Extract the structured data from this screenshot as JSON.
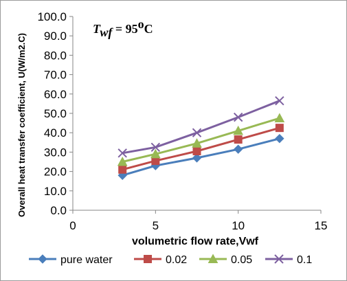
{
  "chart_data": {
    "type": "line",
    "xlabel": "volumetric flow rate,Vwf",
    "ylabel": "Overall heat transfer coefficient, U(W/m2.C)",
    "annotation": {
      "symbol": "T",
      "subscript": "wf",
      "equals": " = 95",
      "superscript": "o",
      "unit": "C"
    },
    "xlim": [
      0,
      15
    ],
    "ylim": [
      0,
      100
    ],
    "x_ticks": [
      "0",
      "5",
      "10",
      "15"
    ],
    "y_ticks": [
      "0.0",
      "10.0",
      "20.0",
      "30.0",
      "40.0",
      "50.0",
      "60.0",
      "70.0",
      "80.0",
      "90.0",
      "100.0"
    ],
    "x": [
      3,
      5,
      7.5,
      10,
      12.5
    ],
    "series": [
      {
        "name": "pure water",
        "values": [
          18.0,
          23.0,
          27.0,
          31.5,
          37.0
        ],
        "color": "#4a7ebb",
        "marker": "diamond"
      },
      {
        "name": "0.02",
        "values": [
          21.0,
          25.5,
          30.5,
          36.5,
          42.5
        ],
        "color": "#be4b48",
        "marker": "square"
      },
      {
        "name": "0.05",
        "values": [
          25.0,
          29.0,
          34.5,
          41.0,
          47.5
        ],
        "color": "#98b954",
        "marker": "triangle"
      },
      {
        "name": "0.1",
        "values": [
          29.5,
          32.5,
          40.0,
          48.0,
          56.5
        ],
        "color": "#7d60a0",
        "marker": "x"
      }
    ],
    "legend_position": "bottom",
    "grid": false
  }
}
